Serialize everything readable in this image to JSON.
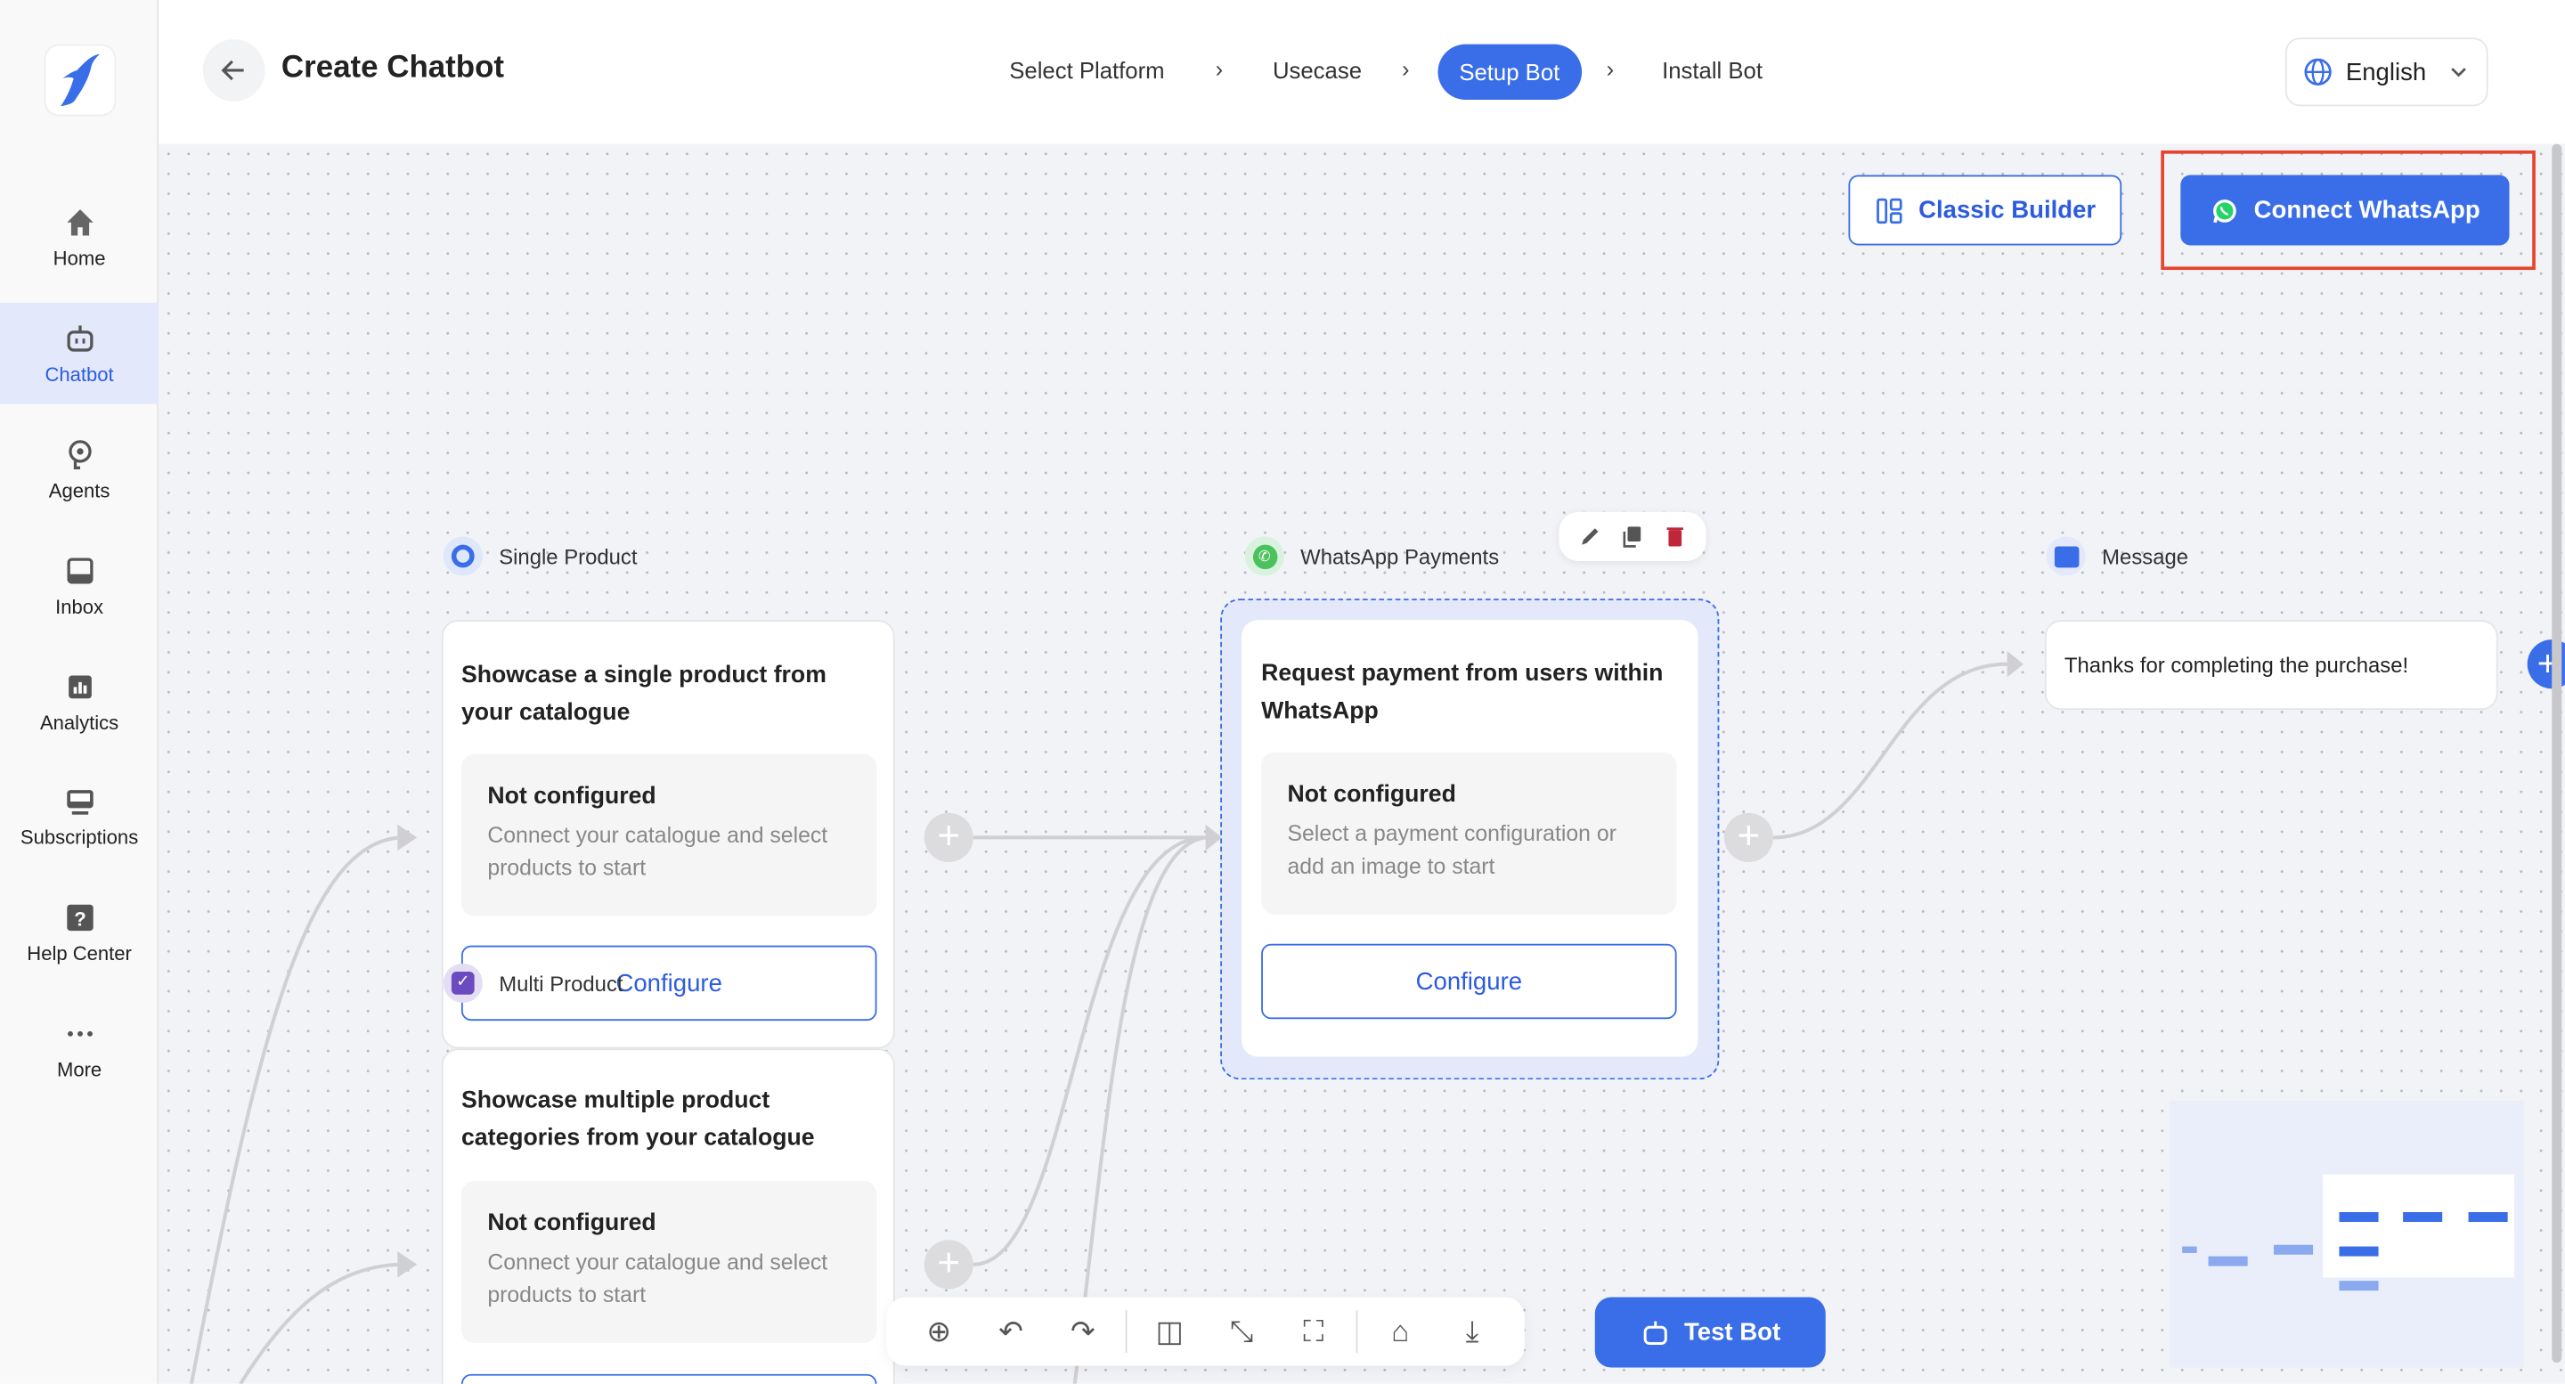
{
  "app": {
    "title": "Create Chatbot"
  },
  "sidebar": {
    "items": [
      {
        "label": "Home",
        "icon": "home-icon"
      },
      {
        "label": "Chatbot",
        "icon": "robot-icon",
        "active": true
      },
      {
        "label": "Agents",
        "icon": "agent-icon"
      },
      {
        "label": "Inbox",
        "icon": "inbox-icon"
      },
      {
        "label": "Analytics",
        "icon": "analytics-icon"
      },
      {
        "label": "Subscriptions",
        "icon": "subscriptions-icon"
      },
      {
        "label": "Help Center",
        "icon": "help-icon"
      },
      {
        "label": "More",
        "icon": "more-icon"
      }
    ]
  },
  "stepper": {
    "steps": [
      "Select Platform",
      "Usecase",
      "Setup Bot",
      "Install Bot"
    ],
    "active": "Setup Bot"
  },
  "language": {
    "selected": "English"
  },
  "actions": {
    "classic_builder": "Classic Builder",
    "connect_whatsapp": "Connect WhatsApp"
  },
  "nodes": {
    "single": {
      "label": "Single Product",
      "title": "Showcase a single product from your catalogue",
      "status": "Not configured",
      "desc": "Connect your catalogue and select products to start",
      "button": "Configure"
    },
    "multi": {
      "label": "Multi Product",
      "title": "Showcase multiple product categories from your catalogue",
      "status": "Not configured",
      "desc": "Connect your catalogue and select products to start"
    },
    "payments": {
      "label": "WhatsApp Payments",
      "title": "Request payment from users within WhatsApp",
      "status": "Not configured",
      "desc": "Select a payment configuration or add an image to start",
      "button": "Configure"
    },
    "message": {
      "label": "Message",
      "text": "Thanks for completing the purchase!"
    }
  },
  "toolbar": {
    "test_bot": "Test Bot"
  },
  "colors": {
    "accent": "#3a6ee8",
    "highlight": "#e8432d",
    "whatsapp": "#25d366",
    "canvas": "#f2f3f7"
  }
}
